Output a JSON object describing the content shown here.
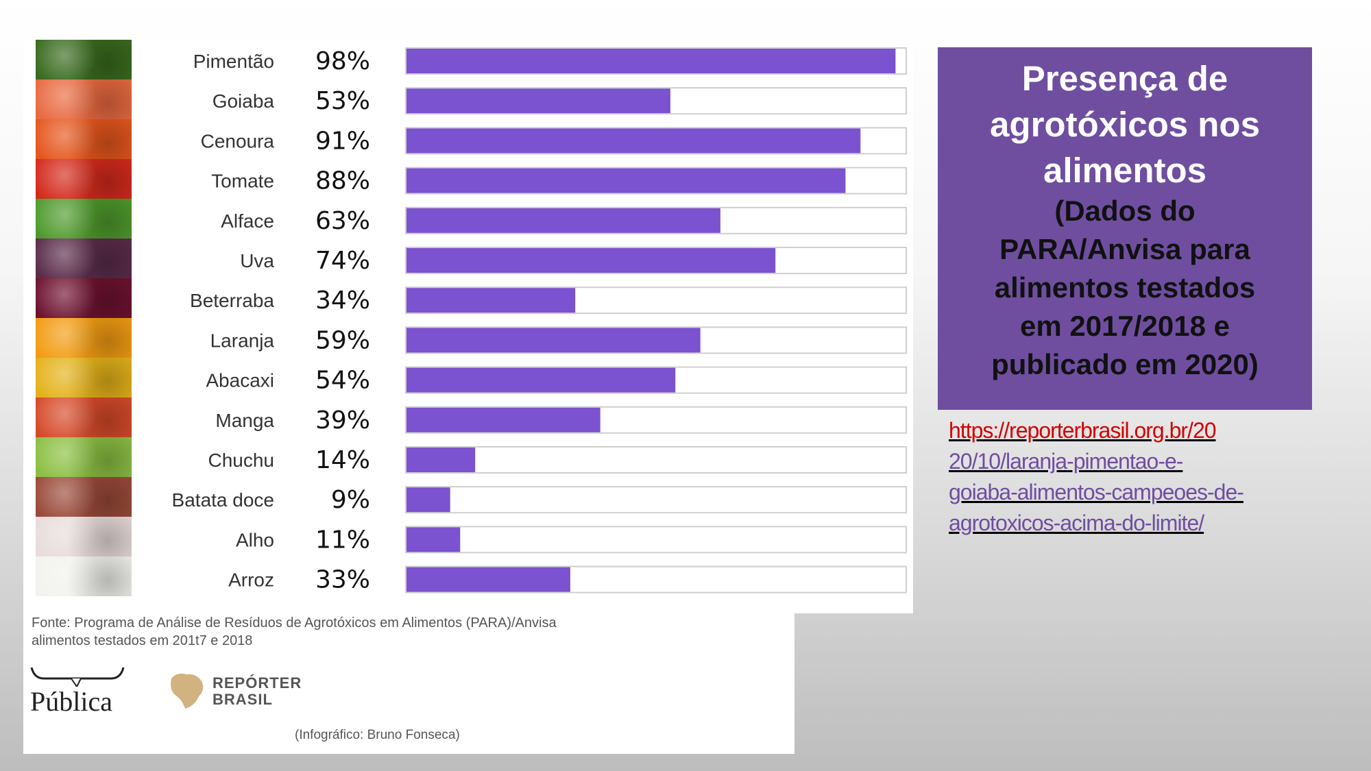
{
  "chart_data": {
    "type": "bar",
    "orientation": "horizontal",
    "categories": [
      "Pimentão",
      "Goiaba",
      "Cenoura",
      "Tomate",
      "Alface",
      "Uva",
      "Beterraba",
      "Laranja",
      "Abacaxi",
      "Manga",
      "Chuchu",
      "Batata doce",
      "Alho",
      "Arroz"
    ],
    "values": [
      98,
      53,
      91,
      88,
      63,
      74,
      34,
      59,
      54,
      39,
      14,
      9,
      11,
      33
    ],
    "value_labels": [
      "98%",
      "53%",
      "91%",
      "88%",
      "63%",
      "74%",
      "34%",
      "59%",
      "54%",
      "39%",
      "14%",
      "9%",
      "11%",
      "33%"
    ],
    "xlim": [
      0,
      100
    ],
    "unit": "%",
    "bar_color": "#7b52cf",
    "track_color": "#ffffff",
    "track_border": "#cfcfcf"
  },
  "infographic": {
    "source_line1": "Fonte: Programa de Análise de Resíduos de Agrotóxicos em Alimentos (PARA)/Anvisa",
    "source_line2": "alimentos testados em 201t7 e 2018",
    "logo_publica": "Pública",
    "logo_reporter_line1": "REPÓRTER",
    "logo_reporter_line2": "BRASIL",
    "credit": "(Infográfico: Bruno Fonseca)"
  },
  "title_box": {
    "title_line1": "Presença de",
    "title_line2": "agrotóxicos nos",
    "title_line3": "alimentos",
    "sub_line1": "(Dados do",
    "sub_line2": "PARA/Anvisa para",
    "sub_line3": "alimentos testados",
    "sub_line4": "em 2017/2018 e",
    "sub_line5": "publicado em 2020)",
    "background": "#6f4ea0"
  },
  "source_link": {
    "line1": "https://reporterbrasil.org.br/20",
    "line2": "20/10/laranja-pimentao-e-",
    "line3": "goiaba-alimentos-campeoes-de-",
    "line4": "agrotoxicos-acima-do-limite/"
  },
  "veg_colors": [
    "#3a6b1f",
    "#e86a40",
    "#e5561d",
    "#d42a1c",
    "#4f9a2c",
    "#5a2c4a",
    "#6e1230",
    "#f39c12",
    "#e4b21a",
    "#d64a2a",
    "#8bbf43",
    "#9a4a3a",
    "#e8dcdc",
    "#f2f2ee"
  ]
}
